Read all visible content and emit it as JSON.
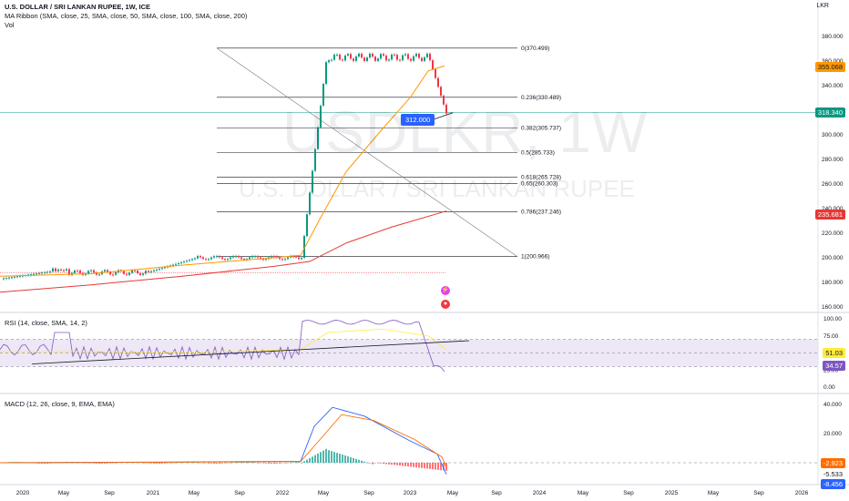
{
  "symbol": {
    "title": "U.S. DOLLAR / SRI LANKAN RUPEE, 1W, ICE",
    "watermark_ticker": "USDLKR, 1W",
    "watermark_name": "U.S. DOLLAR / SRI LANKAN RUPEE",
    "currency": "LKR"
  },
  "legend": {
    "ma_ribbon": "MA Ribbon (SMA, close, 25, SMA, close, 50, SMA, close, 100, SMA, close, 200)",
    "vol": "Vol",
    "rsi": "RSI (14, close, SMA, 14, 2)",
    "macd": "MACD (12, 26, close, 9, EMA, EMA)"
  },
  "price_axis": [
    "380.000",
    "360.000",
    "340.000",
    "320.000",
    "300.000",
    "280.000",
    "260.000",
    "240.000",
    "220.000",
    "200.000",
    "180.000",
    "160.000"
  ],
  "rsi_axis": [
    "100.00",
    "75.00",
    "50.00",
    "25.00",
    "0.00"
  ],
  "macd_axis": [
    "40.000",
    "20.000"
  ],
  "x_axis": [
    "2020",
    "May",
    "Sep",
    "2021",
    "May",
    "Sep",
    "2022",
    "May",
    "Sep",
    "2023",
    "May",
    "Sep",
    "2024",
    "May",
    "Sep",
    "2025",
    "May",
    "Sep",
    "2026"
  ],
  "badges": {
    "ma_price": "355.068",
    "last_price": "318.340",
    "ma200_price": "235.681",
    "rsi_a": "51.03",
    "rsi_b": "34.57",
    "macd_a": "-2.923",
    "macd_b": "-5.533",
    "macd_c": "-8.456",
    "pricetag": "312.000"
  },
  "fib_levels": [
    {
      "label": "0(370.499)",
      "value": 370.499
    },
    {
      "label": "0.236(330.489)",
      "value": 330.489
    },
    {
      "label": "0.382(305.737)",
      "value": 305.737
    },
    {
      "label": "0.5(285.733)",
      "value": 285.733
    },
    {
      "label": "0.618(265.728)",
      "value": 265.728
    },
    {
      "label": "0.65(260.303)",
      "value": 260.303
    },
    {
      "label": "0.786(237.246)",
      "value": 237.246
    },
    {
      "label": "1(200.966)",
      "value": 200.966
    }
  ],
  "colors": {
    "up": "#089981",
    "down": "#f23645",
    "ma_orange": "#ff9800",
    "ma_red": "#e53935",
    "rsi": "#7e57c2",
    "rsi_bg": "#ede7f6",
    "macd": "#2962ff",
    "signal": "#ff6d00",
    "last_price": "#089981"
  }
}
